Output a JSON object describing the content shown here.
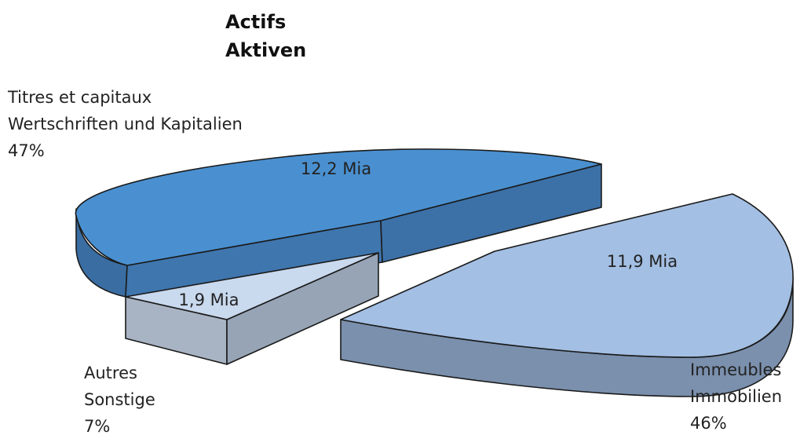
{
  "chart_data": {
    "type": "pie",
    "title_lines": [
      "Actifs",
      "Aktiven"
    ],
    "slices": [
      {
        "key": "titres",
        "label_lines": [
          "Titres et capitaux",
          "Wertschriften und Kapitalien"
        ],
        "percent": 47,
        "percent_text": "47%",
        "value": 12.2,
        "value_text": "12,2 Mia",
        "color": "#4a90d0"
      },
      {
        "key": "immeubles",
        "label_lines": [
          "Immeubles",
          "Immobilien"
        ],
        "percent": 46,
        "percent_text": "46%",
        "value": 11.9,
        "value_text": "11,9 Mia",
        "color": "#a3bfe3"
      },
      {
        "key": "autres",
        "label_lines": [
          "Autres",
          "Sonstige"
        ],
        "percent": 7,
        "percent_text": "7%",
        "value": 1.9,
        "value_text": "1,9 Mia",
        "color": "#c9d9ee"
      }
    ],
    "legend": "none",
    "style": "3d-exploded"
  }
}
